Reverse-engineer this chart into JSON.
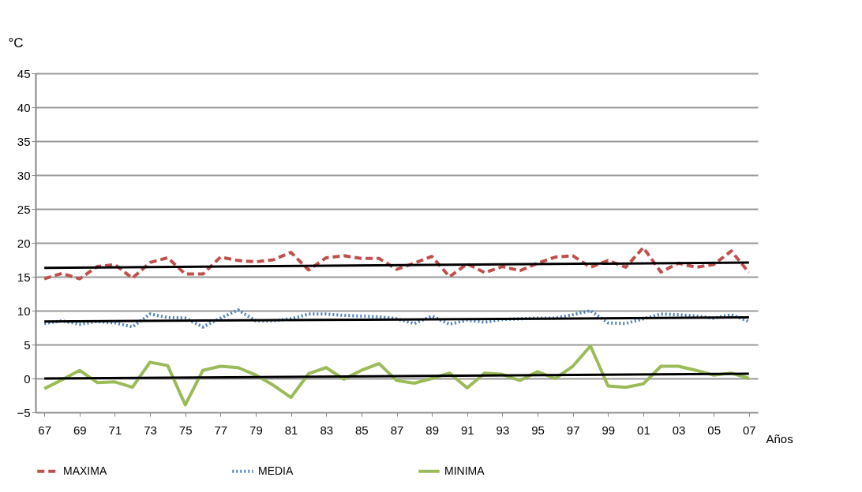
{
  "chart_data": {
    "type": "line",
    "xlabel": "Años",
    "ylabel": "°C",
    "categories": [
      "67",
      null,
      "69",
      null,
      "71",
      null,
      "73",
      null,
      "75",
      null,
      "77",
      null,
      "79",
      null,
      "81",
      null,
      "83",
      null,
      "85",
      null,
      "87",
      null,
      "89",
      null,
      "91",
      null,
      "93",
      null,
      "95",
      null,
      "97",
      null,
      "99",
      null,
      "01",
      null,
      "03",
      null,
      "05",
      null,
      "07"
    ],
    "ylim": [
      -5,
      45
    ],
    "yticks": [
      -5,
      0,
      5,
      10,
      15,
      20,
      25,
      30,
      35,
      40,
      45
    ],
    "grid": "y",
    "legend": "bottom",
    "series": [
      {
        "name": "MAXIMA",
        "color": "#c0504d",
        "line_style": "dashed",
        "values": [
          14.7,
          15.5,
          14.7,
          16.5,
          16.8,
          14.8,
          17.1,
          17.8,
          15.4,
          15.4,
          17.9,
          17.4,
          17.2,
          17.5,
          18.6,
          16.0,
          17.8,
          18.1,
          17.7,
          17.7,
          16.1,
          17.0,
          18.0,
          15.0,
          16.9,
          15.6,
          16.5,
          15.9,
          17.0,
          17.9,
          18.1,
          16.4,
          17.4,
          16.4,
          19.3,
          15.7,
          17.0,
          16.4,
          16.8,
          18.8,
          15.6
        ]
      },
      {
        "name": "MEDIA",
        "color": "#4f81bd",
        "line_style": "dotted",
        "values": [
          8.1,
          8.5,
          8.0,
          8.4,
          8.2,
          7.6,
          9.5,
          9.0,
          8.9,
          7.6,
          8.9,
          10.1,
          8.5,
          8.5,
          8.8,
          9.5,
          9.5,
          9.3,
          9.2,
          9.1,
          8.8,
          8.1,
          9.2,
          8.0,
          8.6,
          8.3,
          8.7,
          8.8,
          8.9,
          8.9,
          9.4,
          10.0,
          8.2,
          8.1,
          8.8,
          9.5,
          9.4,
          9.2,
          8.9,
          9.4,
          8.4
        ]
      },
      {
        "name": "MINIMA",
        "color": "#9bbb59",
        "line_style": "solid",
        "values": [
          -1.5,
          -0.2,
          1.2,
          -0.6,
          -0.5,
          -1.3,
          2.4,
          1.9,
          -3.9,
          1.2,
          1.8,
          1.6,
          0.5,
          -1.0,
          -2.8,
          0.7,
          1.6,
          -0.1,
          1.2,
          2.2,
          -0.3,
          -0.7,
          0.0,
          0.8,
          -1.4,
          0.8,
          0.6,
          -0.3,
          1.0,
          0.0,
          1.8,
          4.8,
          -1.1,
          -1.3,
          -0.8,
          1.8,
          1.8,
          1.2,
          0.5,
          0.8,
          0.0
        ]
      },
      {
        "type": "line",
        "color": "#000000",
        "line_style": "solid",
        "x": [
          "67",
          "07"
        ],
        "values": [
          16.3,
          17.1
        ]
      },
      {
        "type": "line",
        "color": "#000000",
        "line_style": "solid",
        "x": [
          "67",
          "07"
        ],
        "values": [
          8.4,
          9.0
        ]
      },
      {
        "type": "line",
        "color": "#000000",
        "line_style": "solid",
        "x": [
          "67",
          "07"
        ],
        "values": [
          0.0,
          0.7
        ]
      }
    ]
  }
}
